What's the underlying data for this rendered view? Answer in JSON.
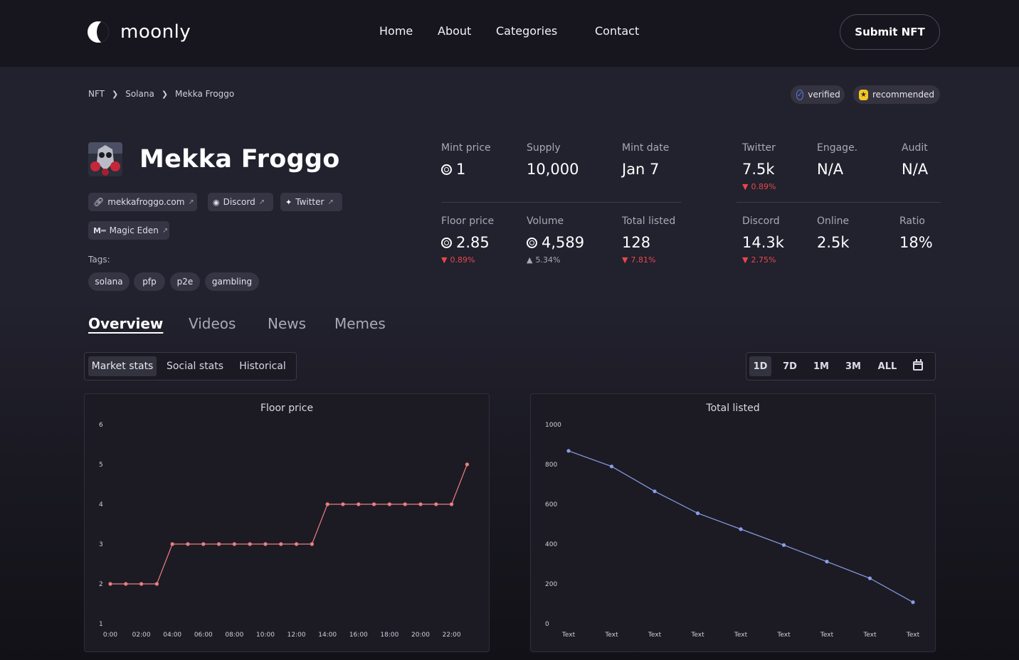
{
  "header": {
    "logo_text": "moonly",
    "nav": [
      "Home",
      "About",
      "Categories",
      "Contact"
    ],
    "submit_label": "Submit NFT"
  },
  "breadcrumb": [
    "NFT",
    "Solana",
    "Mekka Froggo"
  ],
  "badges": {
    "verified": "verified",
    "recommended": "recommended"
  },
  "project": {
    "name": "Mekka Froggo",
    "links": {
      "website": "mekkafroggo.com",
      "discord": "Discord",
      "twitter": "Twitter",
      "magic_eden": "Magic Eden"
    },
    "tags_label": "Tags:",
    "tags": [
      "solana",
      "pfp",
      "p2e",
      "gambling"
    ]
  },
  "stats": {
    "mint_price": {
      "label": "Mint price",
      "value": "1"
    },
    "supply": {
      "label": "Supply",
      "value": "10,000"
    },
    "mint_date": {
      "label": "Mint date",
      "value": "Jan 7"
    },
    "twitter": {
      "label": "Twitter",
      "value": "7.5k",
      "change": "0.89%"
    },
    "engage": {
      "label": "Engage.",
      "value": "N/A"
    },
    "audit": {
      "label": "Audit",
      "value": "N/A"
    },
    "floor_price": {
      "label": "Floor price",
      "value": "2.85",
      "change": "0.89%"
    },
    "volume": {
      "label": "Volume",
      "value": "4,589",
      "change": "5.34%"
    },
    "total_listed": {
      "label": "Total listed",
      "value": "128",
      "change": "7.81%"
    },
    "discord": {
      "label": "Discord",
      "value": "14.3k",
      "change": "2.75%"
    },
    "online": {
      "label": "Online",
      "value": "2.5k"
    },
    "ratio": {
      "label": "Ratio",
      "value": "18%"
    }
  },
  "tabs": [
    "Overview",
    "Videos",
    "News",
    "Memes"
  ],
  "subtabs": [
    "Market stats",
    "Social stats",
    "Historical"
  ],
  "ranges": [
    "1D",
    "7D",
    "1M",
    "3M",
    "ALL"
  ],
  "colors": {
    "floor_line": "#ec7e80",
    "listed_line": "#8a9ee6",
    "down": "#e5484d"
  },
  "chart_data": [
    {
      "type": "line",
      "title": "Floor price",
      "ylim": [
        1,
        6
      ],
      "yticks": [
        1,
        2,
        3,
        4,
        5,
        6
      ],
      "xticks": [
        "0:00",
        "02:00",
        "04:00",
        "06:00",
        "08:00",
        "10:00",
        "12:00",
        "14:00",
        "16:00",
        "18:00",
        "20:00",
        "22:00"
      ],
      "x": [
        0,
        1,
        2,
        3,
        4,
        5,
        6,
        7,
        8,
        9,
        10,
        11,
        12,
        13,
        14,
        15,
        16,
        17,
        18,
        19,
        20,
        21,
        22,
        23
      ],
      "values": [
        2,
        2,
        2,
        2,
        3,
        3,
        3,
        3,
        3,
        3,
        3,
        3,
        3,
        3,
        4,
        4,
        4,
        4,
        4,
        4,
        4,
        4,
        4,
        5
      ]
    },
    {
      "type": "line",
      "title": "Total listed",
      "ylim": [
        0,
        1000
      ],
      "yticks": [
        0,
        200,
        400,
        600,
        800,
        1000
      ],
      "categories": [
        "Text",
        "Text",
        "Text",
        "Text",
        "Text",
        "Text",
        "Text",
        "Text",
        "Text"
      ],
      "values": [
        868,
        790,
        665,
        555,
        475,
        395,
        312,
        228,
        108
      ]
    }
  ]
}
